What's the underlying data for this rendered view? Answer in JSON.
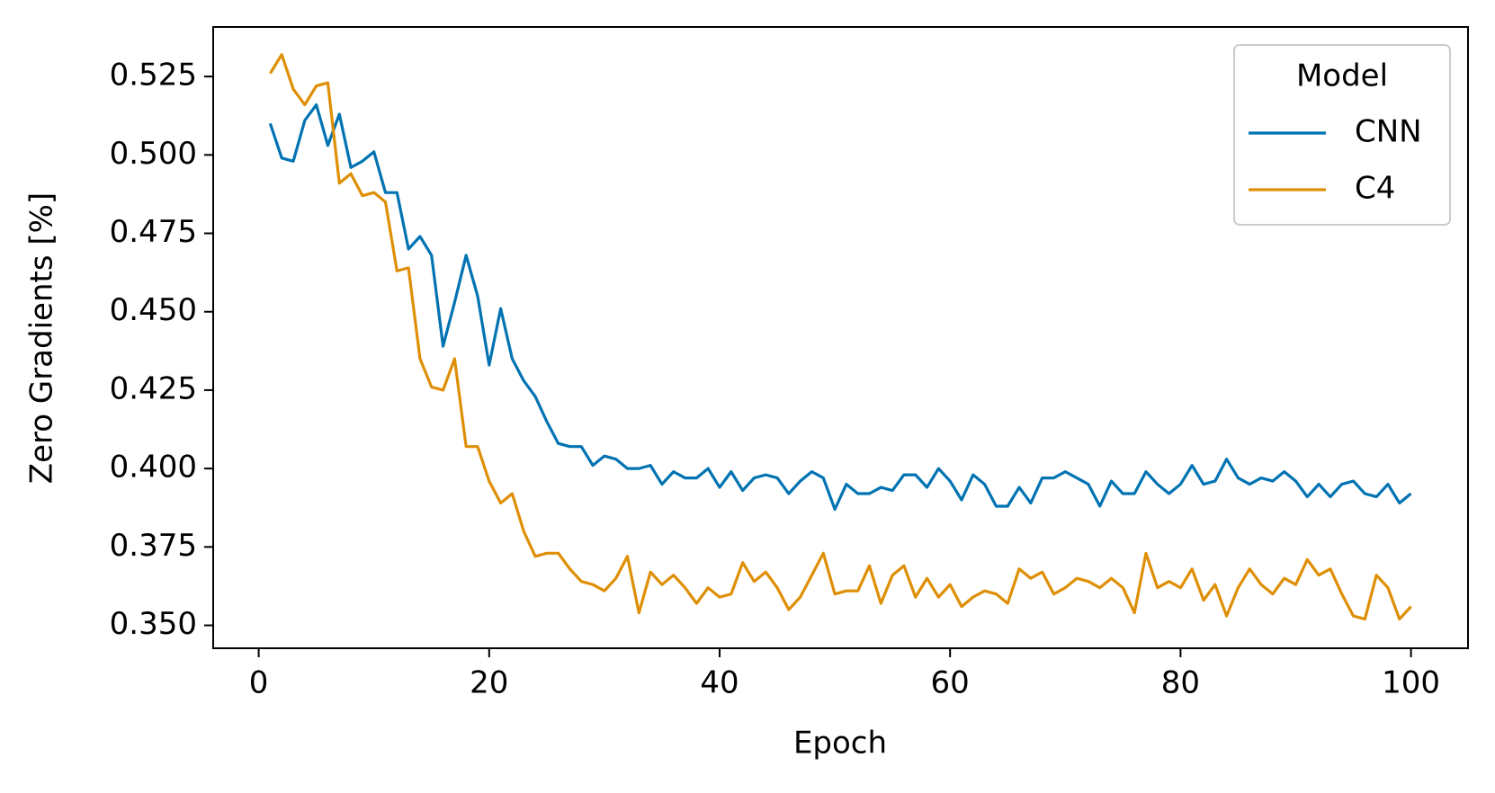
{
  "chart_data": {
    "type": "line",
    "xlabel": "Epoch",
    "ylabel": "Zero Gradients [%]",
    "legend_title": "Model",
    "legend": "upper right",
    "x": [
      1,
      2,
      3,
      4,
      5,
      6,
      7,
      8,
      9,
      10,
      11,
      12,
      13,
      14,
      15,
      16,
      17,
      18,
      19,
      20,
      21,
      22,
      23,
      24,
      25,
      26,
      27,
      28,
      29,
      30,
      31,
      32,
      33,
      34,
      35,
      36,
      37,
      38,
      39,
      40,
      41,
      42,
      43,
      44,
      45,
      46,
      47,
      48,
      49,
      50,
      51,
      52,
      53,
      54,
      55,
      56,
      57,
      58,
      59,
      60,
      61,
      62,
      63,
      64,
      65,
      66,
      67,
      68,
      69,
      70,
      71,
      72,
      73,
      74,
      75,
      76,
      77,
      78,
      79,
      80,
      81,
      82,
      83,
      84,
      85,
      86,
      87,
      88,
      89,
      90,
      91,
      92,
      93,
      94,
      95,
      96,
      97,
      98,
      99,
      100
    ],
    "series": [
      {
        "name": "CNN",
        "color": "#0173b2",
        "values": [
          0.51,
          0.499,
          0.498,
          0.511,
          0.516,
          0.503,
          0.513,
          0.496,
          0.498,
          0.501,
          0.488,
          0.488,
          0.47,
          0.474,
          0.468,
          0.439,
          0.453,
          0.468,
          0.455,
          0.433,
          0.451,
          0.435,
          0.428,
          0.423,
          0.415,
          0.408,
          0.407,
          0.407,
          0.401,
          0.404,
          0.403,
          0.4,
          0.4,
          0.401,
          0.395,
          0.399,
          0.397,
          0.397,
          0.4,
          0.394,
          0.399,
          0.393,
          0.397,
          0.398,
          0.397,
          0.392,
          0.396,
          0.399,
          0.397,
          0.387,
          0.395,
          0.392,
          0.392,
          0.394,
          0.393,
          0.398,
          0.398,
          0.394,
          0.4,
          0.396,
          0.39,
          0.398,
          0.395,
          0.388,
          0.388,
          0.394,
          0.389,
          0.397,
          0.397,
          0.399,
          0.397,
          0.395,
          0.388,
          0.396,
          0.392,
          0.392,
          0.399,
          0.395,
          0.392,
          0.395,
          0.401,
          0.395,
          0.396,
          0.403,
          0.397,
          0.395,
          0.397,
          0.396,
          0.399,
          0.396,
          0.391,
          0.395,
          0.391,
          0.395,
          0.396,
          0.392,
          0.391,
          0.395,
          0.389,
          0.392
        ]
      },
      {
        "name": "C4",
        "color": "#de8f05",
        "values": [
          0.526,
          0.532,
          0.521,
          0.516,
          0.522,
          0.523,
          0.491,
          0.494,
          0.487,
          0.488,
          0.485,
          0.463,
          0.464,
          0.435,
          0.426,
          0.425,
          0.435,
          0.407,
          0.407,
          0.396,
          0.389,
          0.392,
          0.38,
          0.372,
          0.373,
          0.373,
          0.368,
          0.364,
          0.363,
          0.361,
          0.365,
          0.372,
          0.354,
          0.367,
          0.363,
          0.366,
          0.362,
          0.357,
          0.362,
          0.359,
          0.36,
          0.37,
          0.364,
          0.367,
          0.362,
          0.355,
          0.359,
          0.366,
          0.373,
          0.36,
          0.361,
          0.361,
          0.369,
          0.357,
          0.366,
          0.369,
          0.359,
          0.365,
          0.359,
          0.363,
          0.356,
          0.359,
          0.361,
          0.36,
          0.357,
          0.368,
          0.365,
          0.367,
          0.36,
          0.362,
          0.365,
          0.364,
          0.362,
          0.365,
          0.362,
          0.354,
          0.373,
          0.362,
          0.364,
          0.362,
          0.368,
          0.358,
          0.363,
          0.353,
          0.362,
          0.368,
          0.363,
          0.36,
          0.365,
          0.363,
          0.371,
          0.366,
          0.368,
          0.36,
          0.353,
          0.352,
          0.366,
          0.362,
          0.352,
          0.356
        ]
      }
    ],
    "xlim": [
      -3.95,
      104.95
    ],
    "xticks": [
      0,
      20,
      40,
      60,
      80,
      100
    ],
    "ylim": [
      0.3427,
      0.5408
    ],
    "yticks": [
      {
        "value": 0.35,
        "label": "0.350"
      },
      {
        "value": 0.375,
        "label": "0.375"
      },
      {
        "value": 0.4,
        "label": "0.400"
      },
      {
        "value": 0.425,
        "label": "0.425"
      },
      {
        "value": 0.45,
        "label": "0.450"
      },
      {
        "value": 0.475,
        "label": "0.475"
      },
      {
        "value": 0.5,
        "label": "0.500"
      },
      {
        "value": 0.525,
        "label": "0.525"
      }
    ],
    "grid": false
  }
}
